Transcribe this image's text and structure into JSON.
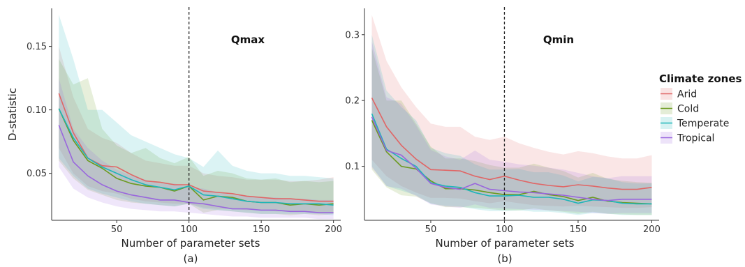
{
  "legend": {
    "title": "Climate zones",
    "entries": [
      {
        "name": "Arid",
        "color": "#e06666"
      },
      {
        "name": "Cold",
        "color": "#6b9a1f"
      },
      {
        "name": "Temperate",
        "color": "#1fb5b8"
      },
      {
        "name": "Tropical",
        "color": "#9966dd"
      }
    ]
  },
  "chart_data": [
    {
      "type": "line",
      "title": "Qmax",
      "xlabel": "Number of parameter sets",
      "ylabel": "D-statistic",
      "sublabel": "(a)",
      "xlim": [
        5,
        205
      ],
      "ylim": [
        0.013,
        0.18
      ],
      "xticks": [
        50,
        100,
        150,
        200
      ],
      "yticks": [
        0.05,
        0.1,
        0.15
      ],
      "ytick_labels": [
        "0.05",
        "0.10",
        "0.15"
      ],
      "vline": 100,
      "grid": false,
      "x": [
        10,
        20,
        30,
        40,
        50,
        60,
        70,
        80,
        90,
        100,
        110,
        120,
        130,
        140,
        150,
        160,
        170,
        180,
        190,
        200
      ],
      "series": [
        {
          "name": "Arid",
          "color": "#e06666",
          "values": [
            0.113,
            0.082,
            0.062,
            0.056,
            0.055,
            0.049,
            0.044,
            0.043,
            0.041,
            0.041,
            0.036,
            0.035,
            0.034,
            0.032,
            0.031,
            0.03,
            0.03,
            0.029,
            0.028,
            0.028
          ],
          "lower": [
            0.07,
            0.05,
            0.04,
            0.036,
            0.034,
            0.03,
            0.028,
            0.027,
            0.026,
            0.026,
            0.023,
            0.022,
            0.022,
            0.021,
            0.021,
            0.02,
            0.02,
            0.02,
            0.019,
            0.019
          ],
          "upper": [
            0.15,
            0.11,
            0.085,
            0.078,
            0.074,
            0.066,
            0.06,
            0.058,
            0.056,
            0.056,
            0.05,
            0.048,
            0.047,
            0.045,
            0.045,
            0.045,
            0.044,
            0.044,
            0.045,
            0.047
          ]
        },
        {
          "name": "Cold",
          "color": "#6b9a1f",
          "values": [
            0.101,
            0.076,
            0.06,
            0.054,
            0.046,
            0.042,
            0.04,
            0.039,
            0.036,
            0.04,
            0.029,
            0.032,
            0.031,
            0.028,
            0.027,
            0.027,
            0.025,
            0.026,
            0.025,
            0.026
          ],
          "lower": [
            0.06,
            0.046,
            0.037,
            0.033,
            0.029,
            0.027,
            0.026,
            0.025,
            0.024,
            0.026,
            0.019,
            0.021,
            0.02,
            0.019,
            0.018,
            0.018,
            0.017,
            0.018,
            0.017,
            0.018
          ],
          "upper": [
            0.14,
            0.12,
            0.125,
            0.085,
            0.072,
            0.066,
            0.07,
            0.062,
            0.058,
            0.063,
            0.048,
            0.052,
            0.05,
            0.046,
            0.045,
            0.046,
            0.043,
            0.044,
            0.043,
            0.044
          ]
        },
        {
          "name": "Temperate",
          "color": "#1fb5b8",
          "values": [
            0.101,
            0.078,
            0.062,
            0.055,
            0.05,
            0.045,
            0.041,
            0.039,
            0.037,
            0.04,
            0.033,
            0.032,
            0.03,
            0.028,
            0.027,
            0.027,
            0.026,
            0.026,
            0.026,
            0.025
          ],
          "lower": [
            0.062,
            0.048,
            0.038,
            0.034,
            0.031,
            0.028,
            0.026,
            0.025,
            0.024,
            0.026,
            0.022,
            0.021,
            0.02,
            0.019,
            0.018,
            0.018,
            0.018,
            0.018,
            0.018,
            0.017
          ],
          "upper": [
            0.175,
            0.14,
            0.1,
            0.1,
            0.09,
            0.08,
            0.075,
            0.07,
            0.065,
            0.062,
            0.055,
            0.068,
            0.056,
            0.052,
            0.05,
            0.05,
            0.048,
            0.048,
            0.047,
            0.046
          ]
        },
        {
          "name": "Tropical",
          "color": "#9966dd",
          "values": [
            0.088,
            0.059,
            0.048,
            0.041,
            0.036,
            0.033,
            0.031,
            0.029,
            0.029,
            0.027,
            0.026,
            0.024,
            0.022,
            0.022,
            0.021,
            0.021,
            0.02,
            0.02,
            0.019,
            0.019
          ],
          "lower": [
            0.055,
            0.038,
            0.031,
            0.027,
            0.024,
            0.022,
            0.021,
            0.02,
            0.02,
            0.019,
            0.018,
            0.017,
            0.016,
            0.016,
            0.015,
            0.015,
            0.015,
            0.015,
            0.014,
            0.014
          ],
          "upper": [
            0.125,
            0.085,
            0.07,
            0.06,
            0.053,
            0.048,
            0.045,
            0.042,
            0.042,
            0.039,
            0.038,
            0.035,
            0.033,
            0.032,
            0.031,
            0.031,
            0.03,
            0.03,
            0.029,
            0.029
          ]
        }
      ]
    },
    {
      "type": "line",
      "title": "Qmin",
      "xlabel": "Number of parameter sets",
      "ylabel": "",
      "sublabel": "(b)",
      "xlim": [
        5,
        205
      ],
      "ylim": [
        0.018,
        0.34
      ],
      "xticks": [
        50,
        100,
        150,
        200
      ],
      "yticks": [
        0.1,
        0.2,
        0.3
      ],
      "ytick_labels": [
        "0.1",
        "0.2",
        "0.3"
      ],
      "vline": 100,
      "grid": false,
      "x": [
        10,
        20,
        30,
        40,
        50,
        60,
        70,
        80,
        90,
        100,
        110,
        120,
        130,
        140,
        150,
        160,
        170,
        180,
        190,
        200
      ],
      "series": [
        {
          "name": "Arid",
          "color": "#e06666",
          "values": [
            0.204,
            0.16,
            0.132,
            0.111,
            0.095,
            0.094,
            0.093,
            0.085,
            0.08,
            0.085,
            0.079,
            0.074,
            0.071,
            0.069,
            0.072,
            0.07,
            0.067,
            0.065,
            0.065,
            0.068
          ],
          "lower": [
            0.11,
            0.085,
            0.07,
            0.06,
            0.052,
            0.052,
            0.051,
            0.047,
            0.044,
            0.047,
            0.044,
            0.041,
            0.04,
            0.039,
            0.04,
            0.039,
            0.038,
            0.037,
            0.037,
            0.038
          ],
          "upper": [
            0.33,
            0.26,
            0.22,
            0.19,
            0.165,
            0.16,
            0.16,
            0.145,
            0.14,
            0.145,
            0.135,
            0.128,
            0.122,
            0.118,
            0.123,
            0.12,
            0.115,
            0.112,
            0.112,
            0.117
          ]
        },
        {
          "name": "Cold",
          "color": "#6b9a1f",
          "values": [
            0.17,
            0.122,
            0.1,
            0.096,
            0.078,
            0.066,
            0.066,
            0.064,
            0.06,
            0.057,
            0.057,
            0.062,
            0.057,
            0.054,
            0.048,
            0.053,
            0.047,
            0.045,
            0.044,
            0.043
          ],
          "lower": [
            0.095,
            0.068,
            0.056,
            0.054,
            0.044,
            0.038,
            0.038,
            0.037,
            0.035,
            0.033,
            0.033,
            0.036,
            0.033,
            0.031,
            0.028,
            0.031,
            0.028,
            0.027,
            0.026,
            0.026
          ],
          "upper": [
            0.28,
            0.2,
            0.2,
            0.165,
            0.13,
            0.112,
            0.112,
            0.108,
            0.102,
            0.098,
            0.098,
            0.104,
            0.098,
            0.093,
            0.083,
            0.09,
            0.081,
            0.078,
            0.076,
            0.075
          ]
        },
        {
          "name": "Temperate",
          "color": "#1fb5b8",
          "values": [
            0.18,
            0.126,
            0.112,
            0.1,
            0.075,
            0.07,
            0.068,
            0.06,
            0.055,
            0.055,
            0.056,
            0.053,
            0.053,
            0.05,
            0.044,
            0.049,
            0.048,
            0.044,
            0.043,
            0.043
          ],
          "lower": [
            0.1,
            0.07,
            0.063,
            0.056,
            0.043,
            0.04,
            0.039,
            0.035,
            0.032,
            0.032,
            0.033,
            0.031,
            0.031,
            0.029,
            0.026,
            0.029,
            0.028,
            0.026,
            0.026,
            0.026
          ],
          "upper": [
            0.3,
            0.215,
            0.19,
            0.17,
            0.128,
            0.12,
            0.116,
            0.103,
            0.095,
            0.095,
            0.096,
            0.091,
            0.091,
            0.086,
            0.077,
            0.084,
            0.082,
            0.076,
            0.074,
            0.074
          ]
        },
        {
          "name": "Tropical",
          "color": "#9966dd",
          "values": [
            0.175,
            0.124,
            0.117,
            0.097,
            0.074,
            0.068,
            0.065,
            0.074,
            0.065,
            0.063,
            0.061,
            0.06,
            0.058,
            0.056,
            0.053,
            0.05,
            0.048,
            0.05,
            0.05,
            0.05
          ],
          "lower": [
            0.098,
            0.07,
            0.066,
            0.055,
            0.042,
            0.039,
            0.037,
            0.042,
            0.037,
            0.036,
            0.035,
            0.034,
            0.033,
            0.032,
            0.031,
            0.029,
            0.028,
            0.029,
            0.029,
            0.029
          ],
          "upper": [
            0.29,
            0.205,
            0.195,
            0.162,
            0.125,
            0.115,
            0.11,
            0.124,
            0.11,
            0.107,
            0.103,
            0.101,
            0.098,
            0.095,
            0.09,
            0.085,
            0.082,
            0.085,
            0.085,
            0.085
          ]
        }
      ]
    }
  ]
}
